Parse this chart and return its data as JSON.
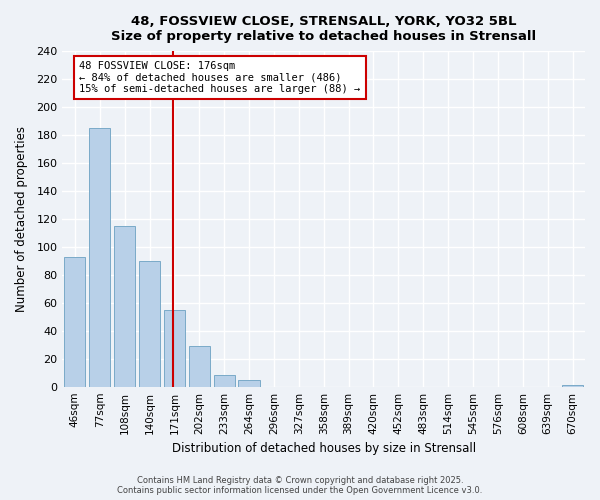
{
  "title_line1": "48, FOSSVIEW CLOSE, STRENSALL, YORK, YO32 5BL",
  "title_line2": "Size of property relative to detached houses in Strensall",
  "xlabel": "Distribution of detached houses by size in Strensall",
  "ylabel": "Number of detached properties",
  "bar_labels": [
    "46sqm",
    "77sqm",
    "108sqm",
    "140sqm",
    "171sqm",
    "202sqm",
    "233sqm",
    "264sqm",
    "296sqm",
    "327sqm",
    "358sqm",
    "389sqm",
    "420sqm",
    "452sqm",
    "483sqm",
    "514sqm",
    "545sqm",
    "576sqm",
    "608sqm",
    "639sqm",
    "670sqm"
  ],
  "bar_values": [
    93,
    185,
    115,
    90,
    55,
    29,
    8,
    5,
    0,
    0,
    0,
    0,
    0,
    0,
    0,
    0,
    0,
    0,
    0,
    0,
    1
  ],
  "bar_color": "#b8d0e8",
  "bar_edge_color": "#7aaac8",
  "vline_x_index": 4,
  "vline_color": "#cc0000",
  "annotation_line1": "48 FOSSVIEW CLOSE: 176sqm",
  "annotation_line2": "← 84% of detached houses are smaller (486)",
  "annotation_line3": "15% of semi-detached houses are larger (88) →",
  "annotation_box_edge_color": "#cc0000",
  "ylim": [
    0,
    240
  ],
  "yticks": [
    0,
    20,
    40,
    60,
    80,
    100,
    120,
    140,
    160,
    180,
    200,
    220,
    240
  ],
  "footer_line1": "Contains HM Land Registry data © Crown copyright and database right 2025.",
  "footer_line2": "Contains public sector information licensed under the Open Government Licence v3.0.",
  "background_color": "#eef2f7",
  "figsize": [
    6.0,
    5.0
  ],
  "dpi": 100
}
